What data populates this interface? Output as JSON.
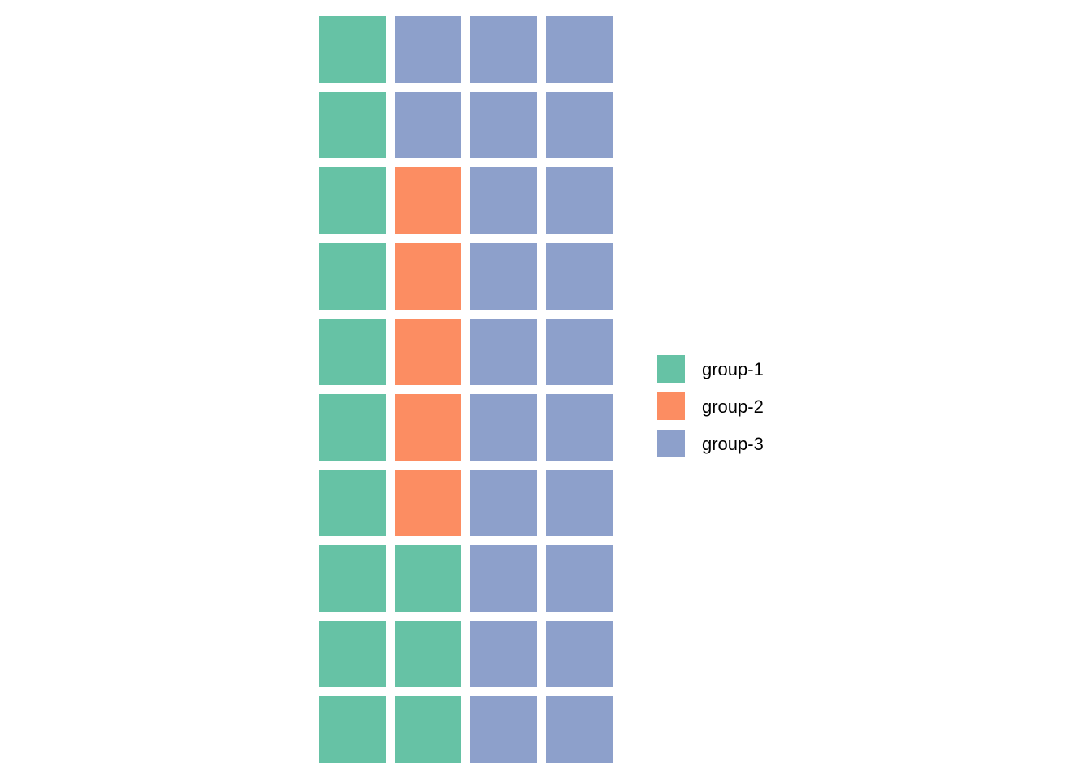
{
  "chart_data": {
    "type": "waffle",
    "title": "",
    "xlabel": "",
    "ylabel": "",
    "grid": false,
    "legend_position": "right",
    "rows": 10,
    "columns": 4,
    "fill_order": "column-wise, bottom to top, left to right",
    "categories": [
      "group-1",
      "group-2",
      "group-3"
    ],
    "values": [
      13,
      5,
      22
    ],
    "colors": [
      "#66c2a5",
      "#fc8d62",
      "#8da0cb"
    ]
  }
}
